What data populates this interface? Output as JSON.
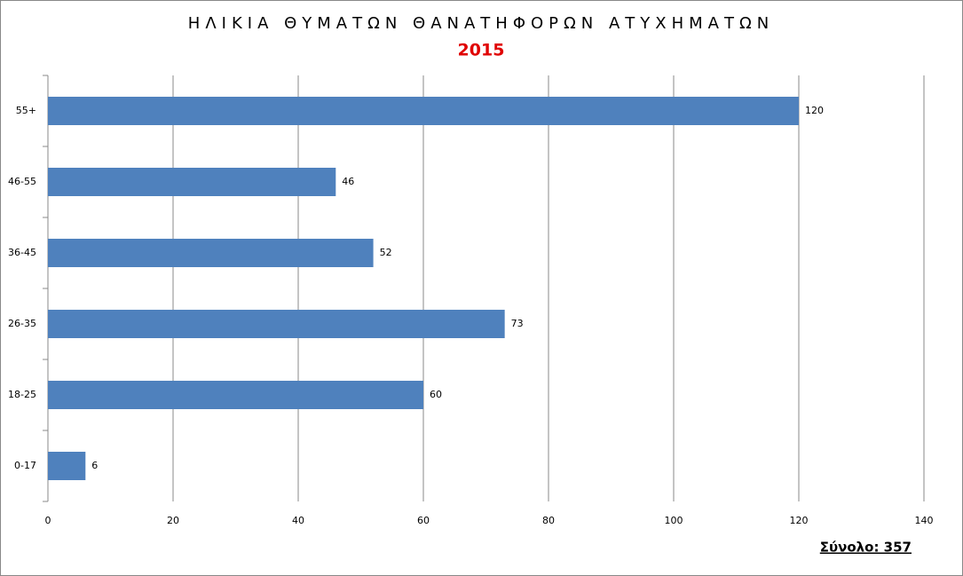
{
  "chart_data": {
    "type": "hbar",
    "title": "ΗΛΙΚΙΑ ΘΥΜΑΤΩΝ ΘΑΝΑΤΗΦΟΡΩΝ ΑΤΥΧΗΜΑΤΩΝ",
    "subtitle": "2015",
    "annotation": "Σύνολο: 357",
    "categories": [
      "55+",
      "46-55",
      "36-45",
      "26-35",
      "18-25",
      "0-17"
    ],
    "values": [
      120,
      46,
      52,
      73,
      60,
      6
    ],
    "color": "#4f81bd",
    "xlim": [
      0,
      140
    ],
    "xticks": [
      0,
      20,
      40,
      60,
      80,
      100,
      120,
      140
    ],
    "grid": true
  }
}
